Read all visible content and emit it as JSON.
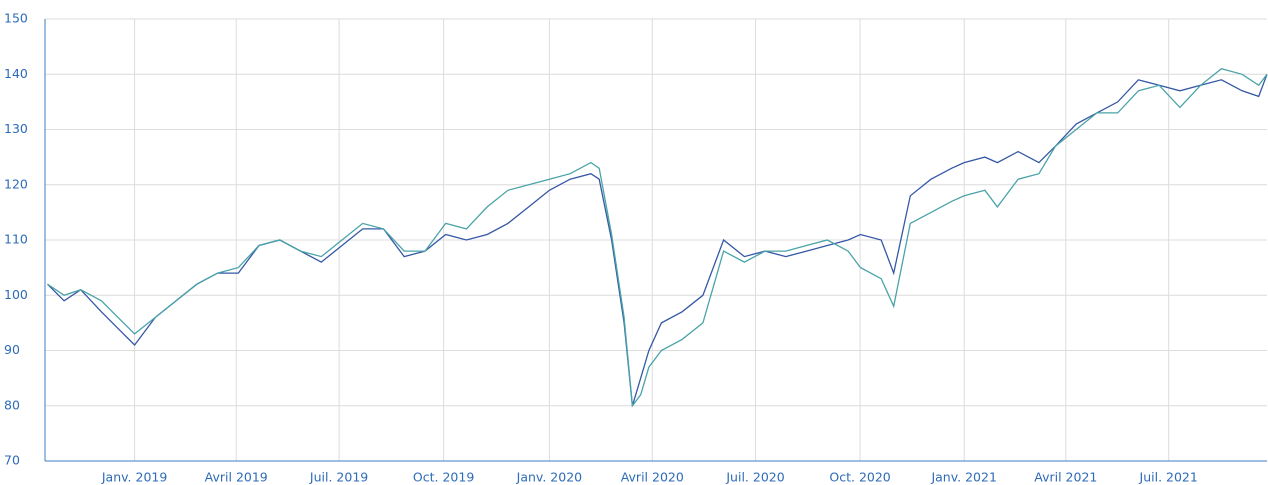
{
  "chart_data": {
    "type": "line",
    "x": [
      2018.79,
      2018.83,
      2018.87,
      2018.92,
      2018.96,
      2019.0,
      2019.05,
      2019.1,
      2019.15,
      2019.2,
      2019.25,
      2019.3,
      2019.35,
      2019.4,
      2019.45,
      2019.5,
      2019.55,
      2019.6,
      2019.65,
      2019.7,
      2019.75,
      2019.8,
      2019.85,
      2019.9,
      2019.95,
      2020.0,
      2020.05,
      2020.1,
      2020.12,
      2020.15,
      2020.18,
      2020.2,
      2020.22,
      2020.24,
      2020.27,
      2020.32,
      2020.37,
      2020.42,
      2020.47,
      2020.52,
      2020.57,
      2020.62,
      2020.67,
      2020.72,
      2020.75,
      2020.8,
      2020.83,
      2020.87,
      2020.92,
      2020.97,
      2021.0,
      2021.05,
      2021.08,
      2021.13,
      2021.18,
      2021.22,
      2021.27,
      2021.32,
      2021.37,
      2021.42,
      2021.47,
      2021.52,
      2021.57,
      2021.62,
      2021.67,
      2021.71,
      2021.73
    ],
    "series": [
      {
        "color": "#3558a5",
        "values": [
          102,
          99,
          101,
          97,
          94,
          91,
          96,
          99,
          102,
          104,
          104,
          109,
          110,
          108,
          106,
          109,
          112,
          112,
          107,
          108,
          111,
          110,
          111,
          113,
          116,
          119,
          121,
          122,
          121,
          110,
          95,
          80,
          85,
          90,
          95,
          97,
          100,
          110,
          107,
          108,
          107,
          108,
          109,
          110,
          111,
          110,
          104,
          118,
          121,
          123,
          124,
          125,
          124,
          126,
          124,
          127,
          131,
          133,
          135,
          139,
          138,
          137,
          138,
          139,
          137,
          136,
          140
        ]
      },
      {
        "color": "#4aa3a8",
        "values": [
          102,
          100,
          101,
          99,
          96,
          93,
          96,
          99,
          102,
          104,
          105,
          109,
          110,
          108,
          107,
          110,
          113,
          112,
          108,
          108,
          113,
          112,
          116,
          119,
          120,
          121,
          122,
          124,
          123,
          111,
          96,
          80,
          82,
          87,
          90,
          92,
          95,
          108,
          106,
          108,
          108,
          109,
          110,
          108,
          105,
          103,
          98,
          113,
          115,
          117,
          118,
          119,
          116,
          121,
          122,
          127,
          130,
          133,
          133,
          137,
          138,
          134,
          138,
          141,
          140,
          138,
          140
        ]
      }
    ],
    "xlim": [
      2018.784,
      2021.73
    ],
    "xticks": [
      {
        "value": 2019.0,
        "label": "Janv. 2019"
      },
      {
        "value": 2019.245,
        "label": "Avril 2019"
      },
      {
        "value": 2019.493,
        "label": "Juil. 2019"
      },
      {
        "value": 2019.745,
        "label": "Oct. 2019"
      },
      {
        "value": 2020.0,
        "label": "Janv. 2020"
      },
      {
        "value": 2020.248,
        "label": "Avril 2020"
      },
      {
        "value": 2020.497,
        "label": "Juil. 2020"
      },
      {
        "value": 2020.749,
        "label": "Oct. 2020"
      },
      {
        "value": 2021.0,
        "label": "Janv. 2021"
      },
      {
        "value": 2021.245,
        "label": "Avril 2021"
      },
      {
        "value": 2021.493,
        "label": "Juil. 2021"
      }
    ],
    "ylim": [
      70,
      150
    ],
    "yticks": [
      70,
      80,
      90,
      100,
      110,
      120,
      130,
      140,
      150
    ],
    "grid": true
  }
}
